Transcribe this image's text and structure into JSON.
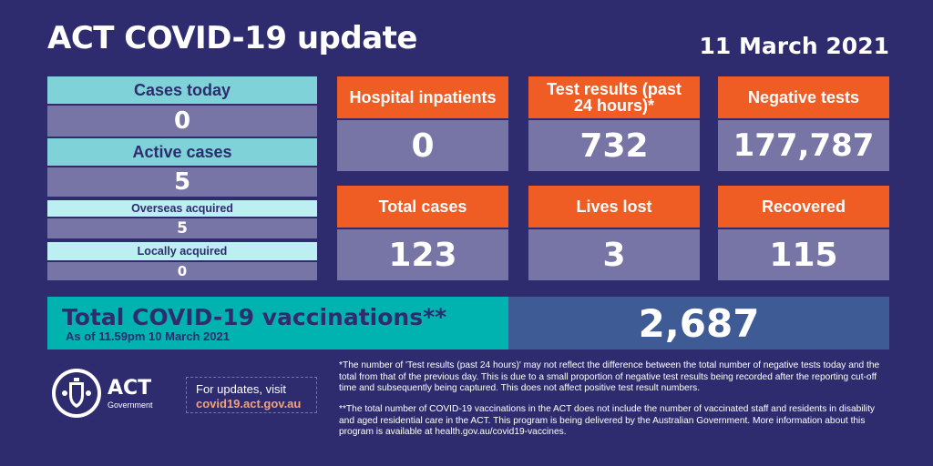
{
  "header": {
    "title": "ACT COVID-19 update",
    "date": "11 March 2021"
  },
  "left_panel": {
    "cases_today": {
      "label": "Cases today",
      "value": "0"
    },
    "active_cases": {
      "label": "Active cases",
      "value": "5"
    },
    "overseas_acquired": {
      "label": "Overseas acquired",
      "value": "5"
    },
    "locally_acquired": {
      "label": "Locally acquired",
      "value": "0"
    }
  },
  "tiles": {
    "hospital": {
      "label": "Hospital inpatients",
      "value": "0"
    },
    "tests": {
      "label": "Test results (past 24 hours)*",
      "value": "732"
    },
    "negative": {
      "label": "Negative tests",
      "value": "177,787"
    },
    "total": {
      "label": "Total cases",
      "value": "123"
    },
    "lives": {
      "label": "Lives lost",
      "value": "3"
    },
    "recovered": {
      "label": "Recovered",
      "value": "115"
    }
  },
  "vaccinations": {
    "title": "Total COVID-19 vaccinations**",
    "subtitle": "As of 11.59pm 10 March 2021",
    "value": "2,687"
  },
  "logo": {
    "name": "ACT",
    "sub": "Government"
  },
  "updates": {
    "prefix": "For updates, visit",
    "url": "covid19.act.gov.au"
  },
  "footnotes": {
    "note1": "*The number of 'Test results (past 24 hours)' may not reflect the difference between the total number of negative tests today and the total from that of the previous day. This is due to a small proportion of negative test results being recorded after the reporting cut-off time and subsequently being captured. This does not affect positive test result numbers.",
    "note2": "**The total number of COVID-19 vaccinations in the ACT does not include the number of vaccinated staff and residents in disability and aged residential care in the ACT. This program is being delivered by the Australian Government. More information about this program is available at health.gov.au/covid19-vaccines."
  },
  "colors": {
    "background": "#2e2c6e",
    "teal": "#7fd2d8",
    "orange": "#ef5c24",
    "value_box": "#7775a5",
    "vax_teal": "#00b3b0",
    "vax_blue": "#3f5b96"
  },
  "icons": {
    "logo": "act-coat-of-arms-icon"
  }
}
